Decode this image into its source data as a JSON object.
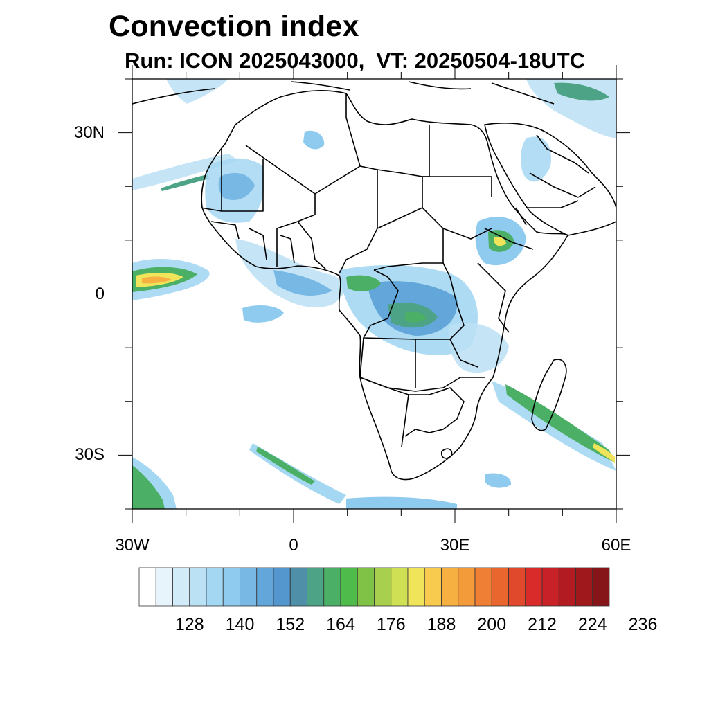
{
  "title": "Convection index",
  "subtitle": "Run: ICON 2025043000,  VT: 20250504-18UTC",
  "map": {
    "lon_range": [
      -30,
      60
    ],
    "lat_range": [
      -40,
      40
    ],
    "y_ticks": [
      {
        "lat": 30,
        "label": "30N"
      },
      {
        "lat": 0,
        "label": "0"
      },
      {
        "lat": -30,
        "label": "30S"
      }
    ],
    "x_ticks": [
      {
        "lon": -30,
        "label": "30W"
      },
      {
        "lon": 0,
        "label": "0"
      },
      {
        "lon": 30,
        "label": "30E"
      },
      {
        "lon": 60,
        "label": "60E"
      }
    ]
  },
  "colorbar": {
    "colors": [
      "#ffffff",
      "#e8f4fb",
      "#d2ebf8",
      "#bbe1f5",
      "#a4d7f2",
      "#8ecbee",
      "#78b8e4",
      "#62a6da",
      "#5497ce",
      "#4f8fa8",
      "#4da386",
      "#4bb065",
      "#4ebb4a",
      "#7fc246",
      "#a8cf4e",
      "#cfe055",
      "#efe45a",
      "#f8cb4e",
      "#f6b042",
      "#f39a3b",
      "#ef7f35",
      "#e9662f",
      "#e1492c",
      "#d92c2a",
      "#c82128",
      "#b31b22",
      "#9f191c",
      "#86151a"
    ],
    "tick_labels": [
      "128",
      "140",
      "152",
      "164",
      "176",
      "188",
      "200",
      "212",
      "224",
      "236"
    ]
  }
}
